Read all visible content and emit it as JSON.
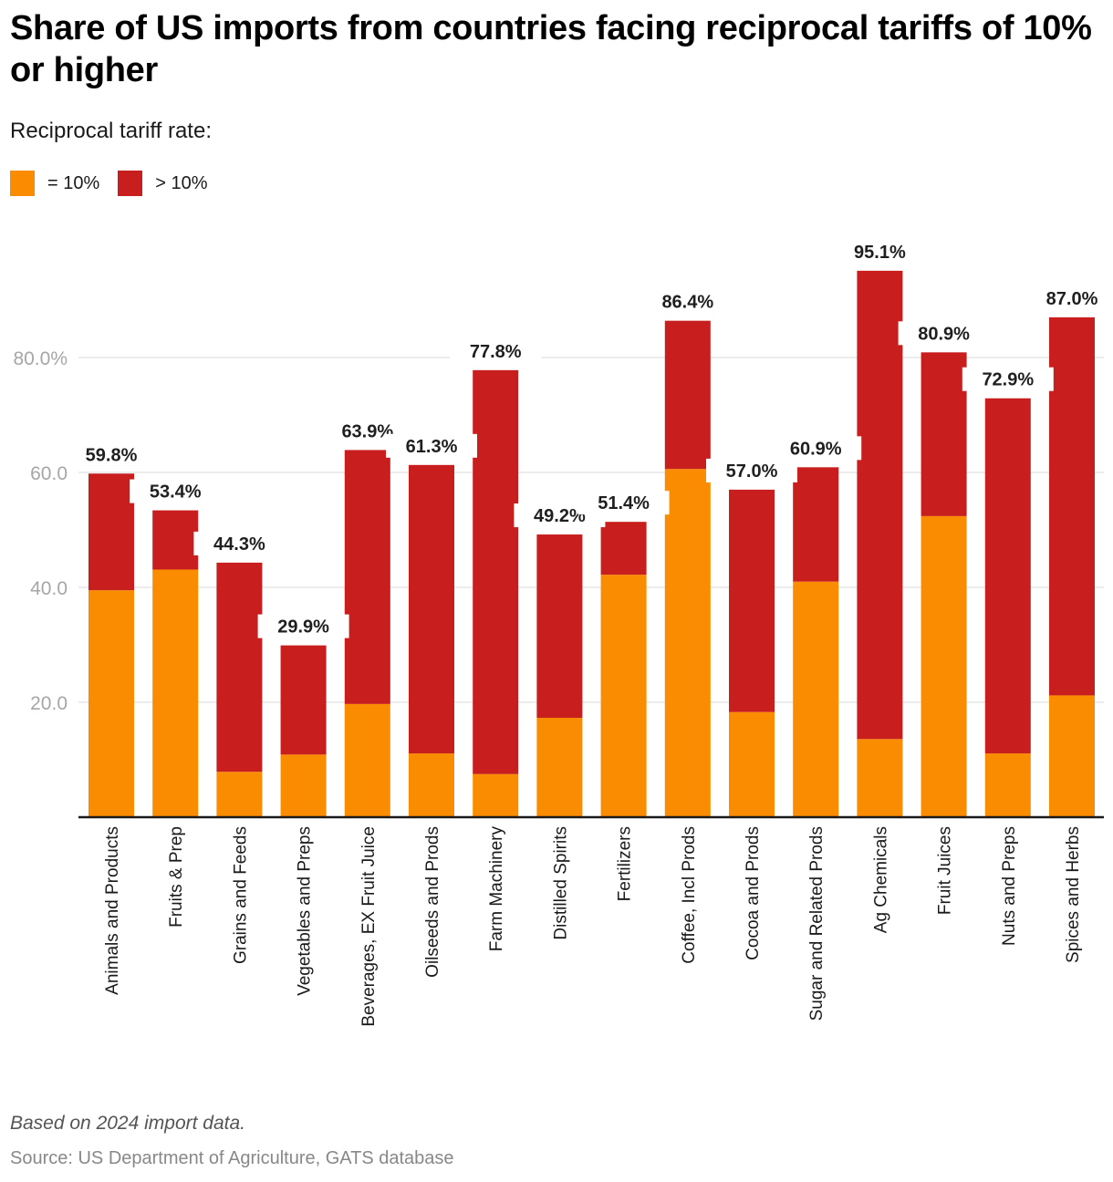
{
  "chart_data": {
    "type": "bar",
    "stacked": true,
    "title": "Share of US imports from countries facing reciprocal tariffs of 10% or higher",
    "subtitle": "Reciprocal tariff rate:",
    "xlabel": "",
    "ylabel": "",
    "ylim": [
      0,
      100
    ],
    "yticks": [
      {
        "value": 20,
        "label": "20.0"
      },
      {
        "value": 40,
        "label": "40.0"
      },
      {
        "value": 60,
        "label": "60.0"
      },
      {
        "value": 80,
        "label": "80.0%"
      }
    ],
    "grid": true,
    "legend_position": "top-left",
    "categories": [
      "Animals and Products",
      "Fruits & Prep",
      "Grains and Feeds",
      "Vegetables and Preps",
      "Beverages, EX Fruit Juice",
      "Oilseeds and Prods",
      "Farm Machinery",
      "Distilled Spirits",
      "Fertilizers",
      "Coffee, Incl Prods",
      "Cocoa and Prods",
      "Sugar and Related Prods",
      "Ag Chemicals",
      "Fruit Juices",
      "Nuts and Preps",
      "Spices and Herbs"
    ],
    "series": [
      {
        "name": "= 10%",
        "color": "#f98c00",
        "values": [
          39.5,
          43.1,
          7.9,
          10.9,
          19.7,
          11.1,
          7.5,
          17.3,
          42.2,
          60.6,
          18.3,
          41.0,
          13.6,
          52.4,
          11.1,
          21.2
        ]
      },
      {
        "name": "> 10%",
        "color": "#c81e1e",
        "values": [
          20.3,
          10.3,
          36.4,
          19.0,
          44.2,
          50.2,
          70.3,
          31.9,
          9.2,
          25.8,
          38.7,
          19.9,
          81.5,
          28.5,
          61.8,
          65.8
        ]
      }
    ],
    "totals": [
      59.8,
      53.4,
      44.3,
      29.9,
      63.9,
      61.3,
      77.8,
      49.2,
      51.4,
      86.4,
      57.0,
      60.9,
      95.1,
      80.9,
      72.9,
      87.0
    ],
    "total_labels": [
      "59.8%",
      "53.4%",
      "44.3%",
      "29.9%",
      "63.9%",
      "61.3%",
      "77.8%",
      "49.2%",
      "51.4%",
      "86.4%",
      "57.0%",
      "60.9%",
      "95.1%",
      "80.9%",
      "72.9%",
      "87.0%"
    ]
  },
  "legend": {
    "items": [
      {
        "label": "= 10%",
        "color": "#f98c00"
      },
      {
        "label": "> 10%",
        "color": "#c81e1e"
      }
    ]
  },
  "footer": {
    "note": "Based on 2024 import data.",
    "source": "Source: US Department of Agriculture, GATS database"
  }
}
